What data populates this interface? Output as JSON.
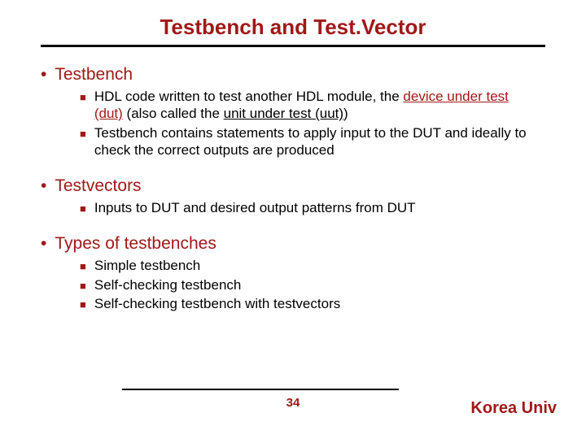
{
  "title": "Testbench and Test.Vector",
  "colors": {
    "accent": "#a01818",
    "text": "#000000",
    "background": "#ffffff",
    "rule": "#000000"
  },
  "typography": {
    "title_fontsize": 26,
    "h1_fontsize": 21,
    "sub_fontsize": 17,
    "footer_fontsize": 20,
    "pagenum_fontsize": 15,
    "family": "Tahoma, Verdana, Arial, sans-serif"
  },
  "sections": [
    {
      "heading": "Testbench",
      "items": [
        {
          "pre": "HDL code written to test another HDL module, the ",
          "red_ul_1": "device under test (dut)",
          "mid": " (also called the ",
          "ul_1": "unit under test (uut)",
          "post": ")"
        },
        {
          "plain": "Testbench contains statements to apply input to the DUT and ideally to check the correct outputs are produced"
        }
      ]
    },
    {
      "heading": "Testvectors",
      "items": [
        {
          "plain": "Inputs to DUT and desired output patterns from DUT"
        }
      ]
    },
    {
      "heading": "Types of testbenches",
      "items": [
        {
          "plain": "Simple testbench"
        },
        {
          "plain": "Self-checking testbench"
        },
        {
          "plain": "Self-checking testbench with testvectors"
        }
      ]
    }
  ],
  "page_number": "34",
  "footer_right": "Korea Univ"
}
